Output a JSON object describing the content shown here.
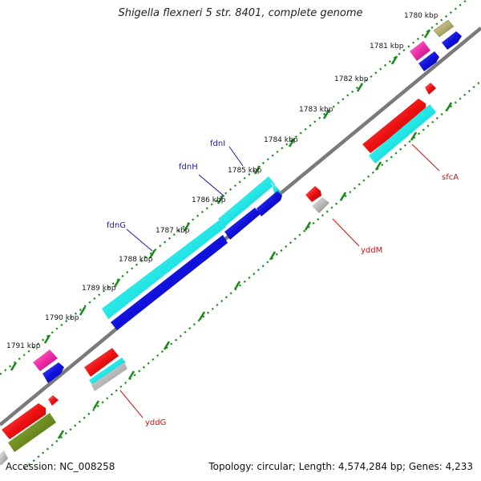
{
  "title": "Shigella flexneri 5 str. 8401, complete genome",
  "accession": "Accession: NC_008258",
  "topology": "Topology: circular; Length: 4,574,284 bp; Genes: 4,233",
  "ticks": [
    {
      "label": "1780 kbp"
    },
    {
      "label": "1781 kbp"
    },
    {
      "label": "1782 kbp"
    },
    {
      "label": "1783 kbp"
    },
    {
      "label": "1784 kbp"
    },
    {
      "label": "1785 kbp"
    },
    {
      "label": "1786 kbp"
    },
    {
      "label": "1787 kbp"
    },
    {
      "label": "1788 kbp"
    },
    {
      "label": "1789 kbp"
    },
    {
      "label": "1790 kbp"
    },
    {
      "label": "1791 kbp"
    }
  ],
  "gene_labels": [
    {
      "name": "fdnI",
      "color": "#1a1aa8"
    },
    {
      "name": "fdnH",
      "color": "#1a1aa8"
    },
    {
      "name": "fdnG",
      "color": "#1a1aa8"
    },
    {
      "name": "sfcA",
      "color": "#cc1111"
    },
    {
      "name": "yddM",
      "color": "#cc1111"
    },
    {
      "name": "yddG",
      "color": "#cc1111"
    }
  ],
  "colors": {
    "backbone": "#808080",
    "dots": "#1a8a1a",
    "cyan": "#22e6e6",
    "blue": "#1010dd",
    "red": "#ee1111",
    "magenta": "#ee2aa8",
    "khaki": "#b5b070",
    "olive": "#6e8e22",
    "gray": "#b8b8b8"
  }
}
